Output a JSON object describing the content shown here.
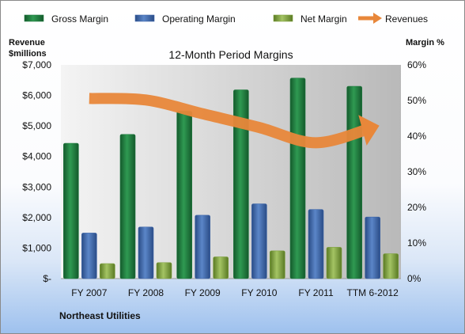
{
  "chart_data": {
    "type": "bar",
    "title": "12-Month Period Margins",
    "company": "Northeast Utilities",
    "left_axis_label": [
      "Revenue",
      "$millions"
    ],
    "right_axis_label": "Margin %",
    "categories": [
      "FY 2007",
      "FY 2008",
      "FY 2009",
      "FY 2010",
      "FY 2011",
      "TTM 6-2012"
    ],
    "left_axis": {
      "min": 0,
      "max": 7000,
      "step": 1000,
      "tick_labels": [
        "$-",
        "$1,000",
        "$2,000",
        "$3,000",
        "$4,000",
        "$5,000",
        "$6,000",
        "$7,000"
      ]
    },
    "right_axis": {
      "min": 0,
      "max": 60,
      "step": 10,
      "tick_labels": [
        "0%",
        "10%",
        "20%",
        "30%",
        "40%",
        "50%",
        "60%"
      ]
    },
    "series": [
      {
        "name": "Gross Margin",
        "axis": "right",
        "type": "bar",
        "color": "#1f7a3f",
        "values": [
          38,
          40.5,
          47,
          53,
          56.3,
          54
        ]
      },
      {
        "name": "Operating Margin",
        "axis": "right",
        "type": "bar",
        "color": "#3f67aa",
        "values": [
          12.8,
          14.5,
          17.8,
          21,
          19.4,
          17.3
        ]
      },
      {
        "name": "Net Margin",
        "axis": "right",
        "type": "bar",
        "color": "#7da03c",
        "values": [
          4.2,
          4.5,
          6.1,
          7.8,
          8.8,
          7
        ]
      },
      {
        "name": "Revenues",
        "axis": "left",
        "type": "trend-arrow",
        "color": "#e8873a",
        "values": [
          5900,
          5850,
          5400,
          4950,
          4450,
          4950
        ]
      }
    ],
    "legend_position": "top",
    "grid": false
  }
}
